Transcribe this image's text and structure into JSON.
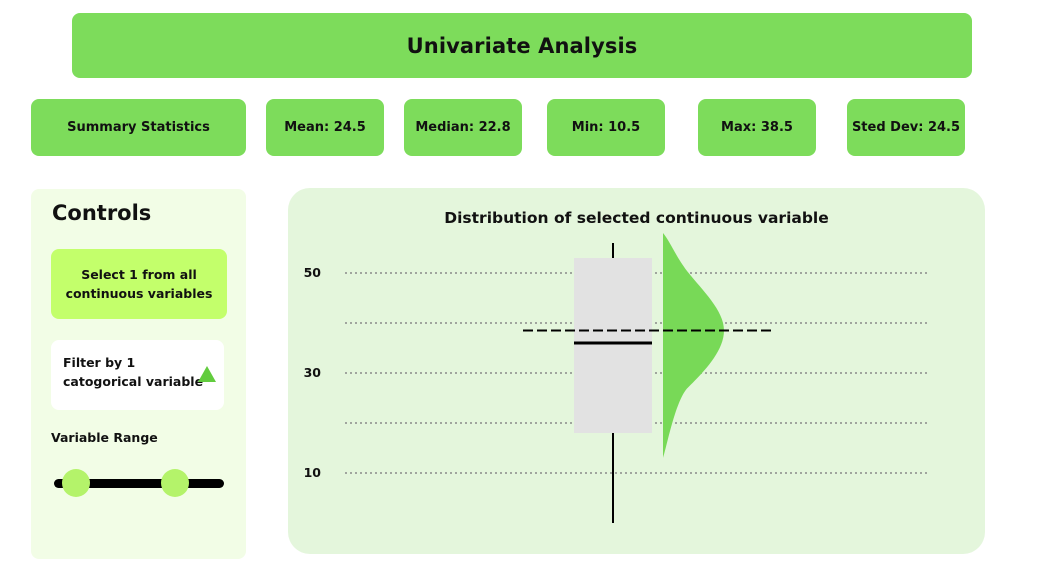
{
  "header": {
    "title": "Univariate Analysis"
  },
  "stats": [
    {
      "label": "Summary Statistics"
    },
    {
      "label": "Mean: 24.5"
    },
    {
      "label": "Median: 22.8"
    },
    {
      "label": "Min: 10.5"
    },
    {
      "label": "Max: 38.5"
    },
    {
      "label": "Sted Dev: 24.5"
    }
  ],
  "controls": {
    "title": "Controls",
    "select_line1": "Select 1 from all",
    "select_line2": "continuous variables",
    "filter_line1": "Filter by 1",
    "filter_line2": "catogorical variable",
    "filter_icon": "triangle-up-icon",
    "range_label": "Variable Range",
    "range_handles": [
      0.13,
      0.71
    ]
  },
  "colors": {
    "accent": "#7ddc5b",
    "select_button": "#c3ff6b",
    "controls_bg": "#f2fde6",
    "chart_bg": "#e4f6dc",
    "box_fill": "#e2e2e2",
    "density_fill": "#78d957"
  },
  "chart_data": {
    "type": "box+density",
    "title": "Distribution of selected continuous variable",
    "xlabel": "",
    "ylabel": "",
    "yticks": [
      50,
      30,
      10
    ],
    "ylim": [
      1,
      61
    ],
    "gridlines": [
      50,
      40,
      30,
      20,
      10
    ],
    "box": {
      "q1": 18,
      "median": 36,
      "q3": 53,
      "whisker_low": 0,
      "whisker_high": 56
    },
    "mean_line": 38.5,
    "density": {
      "peak": 38.5,
      "low": 13,
      "high": 58
    }
  }
}
